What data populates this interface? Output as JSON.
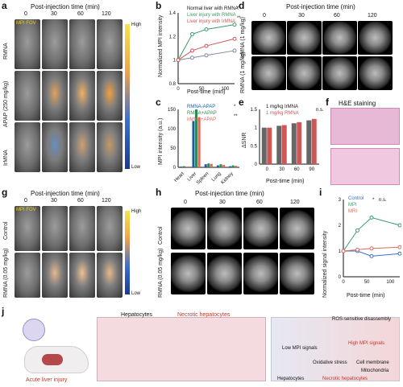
{
  "panels": {
    "a": {
      "letter": "a",
      "title": "Post-injection time (min)",
      "times": [
        "0",
        "30",
        "60",
        "120"
      ],
      "rows": [
        "RMNA",
        "APAP (250 mg/kg)",
        "IrMNA"
      ],
      "fov": "MPI FOV",
      "scale_high": "High",
      "scale_low": "Low"
    },
    "b": {
      "letter": "b",
      "ylabel": "Normalized MPI intensity",
      "xlabel": "Post-time (min)",
      "legend": [
        "Normal liver with RMNA",
        "Liver injury with RMNA",
        "Liver injury with IrMNA"
      ],
      "sig": [
        "*",
        "**"
      ]
    },
    "c": {
      "letter": "c",
      "ylabel": "MPI intensity (a.u.)",
      "legend": [
        "RMNA-APAP",
        "RMNA+APAP",
        "IrMNA+APAP"
      ],
      "categories": [
        "Heart",
        "Liver",
        "Spleen",
        "Lung",
        "Kidney"
      ],
      "sig": [
        "*",
        "**"
      ]
    },
    "d": {
      "letter": "d",
      "title": "Post-injection time (min)",
      "times": [
        "0",
        "30",
        "60",
        "120"
      ],
      "rows": [
        "IrMNA (1 mg/kg)",
        "RMNA (1 mg/kg)"
      ]
    },
    "e": {
      "letter": "e",
      "ylabel": "ΔSNR",
      "xlabel": "Post-time (min)",
      "legend": [
        "1 mg/kg IrMNA",
        "1 mg/kg RMNA"
      ],
      "ns": "n.s."
    },
    "f": {
      "letter": "f",
      "title": "H&E staining"
    },
    "g": {
      "letter": "g",
      "title": "Post-injection time (min)",
      "times": [
        "0",
        "30",
        "60",
        "120"
      ],
      "rows": [
        "Control",
        "RMNA (0.05 mg/kg)"
      ],
      "fov": "MPI FOV",
      "scale_high": "High",
      "scale_low": "Low"
    },
    "h": {
      "letter": "h",
      "title": "Post-injection time (min)",
      "times": [
        "0",
        "30",
        "60",
        "120"
      ],
      "rows": [
        "Control",
        "RMNA (0.05 mg/kg)"
      ]
    },
    "i": {
      "letter": "i",
      "ylabel": "Normalized signal intensity",
      "xlabel": "Post-time (min)",
      "legend": [
        "Control",
        "MPI",
        "MRI"
      ],
      "sig": [
        "*",
        "n.s."
      ]
    },
    "j": {
      "letter": "j",
      "labels": {
        "acute": "Acute liver injury",
        "hepatocytes": "Hepatocytes",
        "necrotic": "Necrotic hepatocytes",
        "ros": "ROS-sensitive disassembly",
        "low": "Low MPI signals",
        "high": "High MPI signals",
        "oxidative": "Oxidative stress",
        "membrane": "Cell membrane",
        "mito": "Mitochondria",
        "hep2": "Hepatocytes",
        "nec2": "Necrotic hepatocytes"
      }
    }
  },
  "chart_data": [
    {
      "type": "line",
      "panel": "b",
      "x": [
        0,
        30,
        60,
        120
      ],
      "series": [
        {
          "name": "Normal liver with RMNA",
          "values": [
            1.0,
            1.02,
            1.04,
            1.08
          ]
        },
        {
          "name": "Liver injury with RMNA",
          "values": [
            1.0,
            1.22,
            1.26,
            1.3
          ]
        },
        {
          "name": "Liver injury with IrMNA",
          "values": [
            1.0,
            1.08,
            1.12,
            1.18
          ]
        }
      ],
      "xlabel": "Post-time (min)",
      "ylabel": "Normalized MPI intensity",
      "xlim": [
        0,
        120
      ],
      "ylim": [
        0.8,
        1.4
      ],
      "xticks": [
        0,
        50,
        100
      ],
      "yticks": [
        0.8,
        1.0,
        1.2,
        1.4
      ]
    },
    {
      "type": "bar",
      "panel": "c",
      "categories": [
        "Heart",
        "Liver",
        "Spleen",
        "Lung",
        "Kidney"
      ],
      "series": [
        {
          "name": "RMNA-APAP",
          "values": [
            2,
            120,
            8,
            5,
            3
          ]
        },
        {
          "name": "RMNA+APAP",
          "values": [
            3,
            150,
            10,
            8,
            5
          ]
        },
        {
          "name": "IrMNA+APAP",
          "values": [
            2,
            130,
            9,
            6,
            4
          ]
        }
      ],
      "ylabel": "MPI intensity (a.u.)",
      "ylim": [
        0,
        150
      ],
      "yticks": [
        0,
        50,
        100,
        150
      ]
    },
    {
      "type": "bar",
      "panel": "e",
      "categories": [
        "0",
        "30",
        "60",
        "90"
      ],
      "series": [
        {
          "name": "1 mg/kg IrMNA",
          "values": [
            1.0,
            1.05,
            1.12,
            1.2
          ]
        },
        {
          "name": "1 mg/kg RMNA",
          "values": [
            1.0,
            1.07,
            1.15,
            1.24
          ]
        }
      ],
      "xlabel": "Post-time (min)",
      "ylabel": "ΔSNR",
      "ylim": [
        0,
        1.5
      ],
      "yticks": [
        0,
        0.5,
        1.0,
        1.5
      ]
    },
    {
      "type": "line",
      "panel": "i",
      "x": [
        0,
        30,
        60,
        120
      ],
      "series": [
        {
          "name": "Control",
          "values": [
            1.0,
            1.0,
            0.8,
            0.9
          ]
        },
        {
          "name": "MPI",
          "values": [
            1.0,
            1.8,
            2.3,
            2.0
          ]
        },
        {
          "name": "MRI",
          "values": [
            1.0,
            1.05,
            1.1,
            1.15
          ]
        }
      ],
      "xlabel": "Post-time (min)",
      "ylabel": "Normalized signal intensity",
      "ylim": [
        0,
        3
      ],
      "yticks": [
        0,
        1,
        2,
        3
      ],
      "xticks": [
        0,
        50,
        100
      ]
    }
  ]
}
